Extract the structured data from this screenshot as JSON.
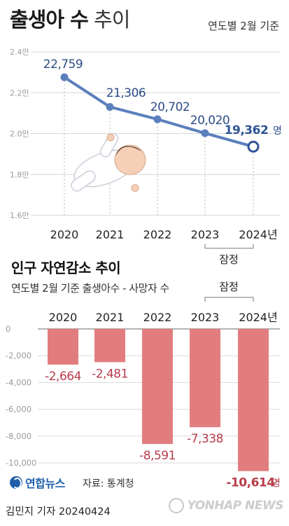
{
  "header": {
    "title_bold": "출생아 수",
    "title_light": "추이",
    "subtitle": "연도별 2월 기준"
  },
  "section2": {
    "title": "인구 자연감소 추이",
    "subtitle": "연도별 2월 기준 출생아수 - 사망자 수"
  },
  "provisional_label": "잠정",
  "footer": {
    "agency": "연합뉴스",
    "source": "자료: 통계청",
    "byline": "김민지 기자  20240424",
    "watermark": "YONHAP NEWS"
  },
  "colors": {
    "line": "#5b7fbd",
    "bar": "#e27d7f",
    "negative_label": "#b73c4a",
    "accent_label": "#2f5496"
  },
  "chart_data": [
    {
      "type": "line",
      "title": "출생아 수 추이",
      "categories": [
        "2020",
        "2021",
        "2022",
        "2023",
        "2024년"
      ],
      "series": [
        {
          "values": [
            22759,
            21306,
            20702,
            20020,
            19362
          ]
        }
      ],
      "value_labels": [
        "22,759",
        "21,306",
        "20,702",
        "20,020",
        "19,362"
      ],
      "last_unit": "명",
      "y_ticks": [
        16000,
        18000,
        20000,
        22000,
        24000
      ],
      "y_tick_labels": [
        "1.6만",
        "1.8만",
        "2.0만",
        "2.2만",
        "2.4만"
      ],
      "ylim": [
        16000,
        24000
      ],
      "grid": true,
      "provisional_categories": [
        "2023",
        "2024년"
      ]
    },
    {
      "type": "bar",
      "title": "인구 자연감소 추이",
      "categories": [
        "2020",
        "2021",
        "2022",
        "2023",
        "2024년"
      ],
      "series": [
        {
          "values": [
            -2664,
            -2481,
            -8591,
            -7338,
            -10614
          ]
        }
      ],
      "value_labels": [
        "-2,664",
        "-2,481",
        "-8,591",
        "-7,338",
        "-10,614"
      ],
      "last_unit": "명",
      "y_ticks": [
        0,
        -2000,
        -4000,
        -6000,
        -8000,
        -10000
      ],
      "y_tick_labels": [
        "0",
        "-2,000",
        "-4,000",
        "-6,000",
        "-8,000",
        "-10,000"
      ],
      "ylim": [
        -11000,
        0
      ],
      "provisional_categories": [
        "2023",
        "2024년"
      ]
    }
  ]
}
